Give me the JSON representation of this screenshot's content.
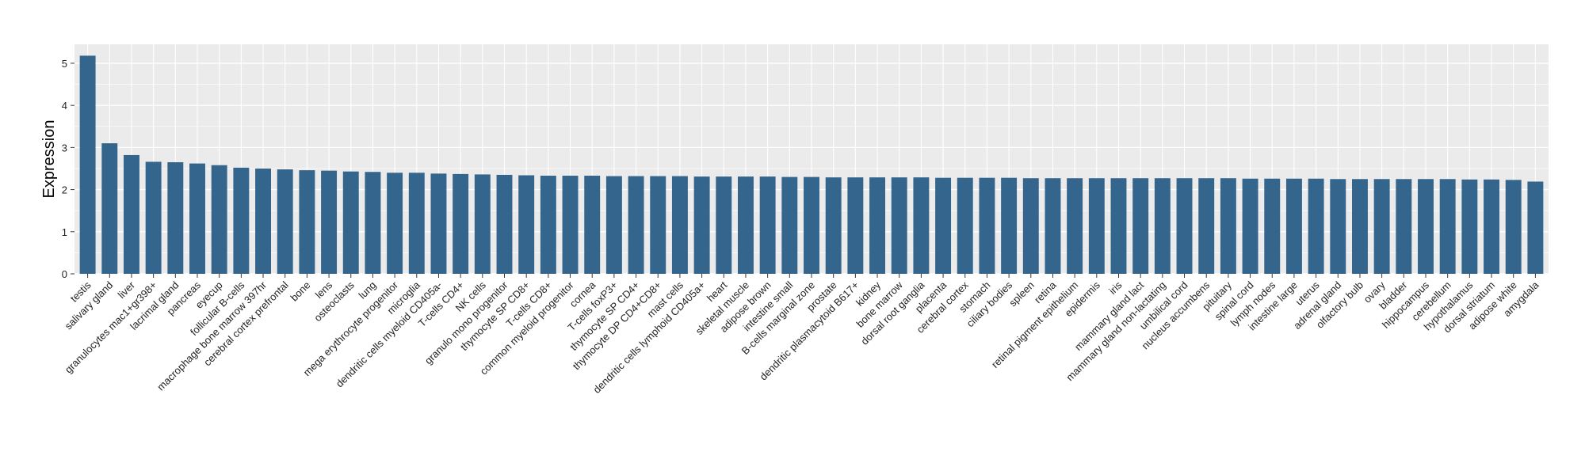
{
  "chart_data": {
    "type": "bar",
    "title": "",
    "xlabel": "",
    "ylabel": "Expression",
    "ylim": [
      0,
      5.45
    ],
    "yticks": [
      0,
      1,
      2,
      3,
      4,
      5
    ],
    "ytick_labels": [
      "0",
      "1",
      "2",
      "3",
      "4",
      "5"
    ],
    "grid": true,
    "legend": "none",
    "colors": {
      "bar": "#34658D",
      "panel": "#EBEBEB",
      "gridline": "#FFFFFF",
      "tick": "#333333"
    },
    "categories": [
      "testis",
      "salivary gland",
      "liver",
      "granulocytes mac1+gr398+",
      "lacrimal gland",
      "pancreas",
      "eyecup",
      "follicular B-cells",
      "macrophage bone marrow 397hr",
      "cerebral cortex prefrontal",
      "bone",
      "lens",
      "osteoclasts",
      "lung",
      "mega erythrocyte progenitor",
      "microglia",
      "dendritic cells myeloid CD405a-",
      "T-cells CD4+",
      "NK cells",
      "granulo mono progenitor",
      "thymocyte SP CD8+",
      "T-cells CD8+",
      "common myeloid progenitor",
      "cornea",
      "T-cells foxP3+",
      "thymocyte SP CD4+",
      "thymocyte DP CD4+CD8+",
      "mast cells",
      "dendritic cells lymphoid CD405a+",
      "heart",
      "skeletal muscle",
      "adipose brown",
      "intestine small",
      "B-cells marginal zone",
      "prostate",
      "dendritic plasmacytoid B617+",
      "kidney",
      "bone marrow",
      "dorsal root ganglia",
      "placenta",
      "cerebral cortex",
      "stomach",
      "ciliary bodies",
      "spleen",
      "retina",
      "retinal pigment epithelium",
      "epidermis",
      "iris",
      "mammary gland lact",
      "mammary gland non-lactating",
      "umbilical cord",
      "nucleus accumbens",
      "pituitary",
      "spinal cord",
      "lymph nodes",
      "intestine large",
      "uterus",
      "adrenal gland",
      "olfactory bulb",
      "ovary",
      "bladder",
      "hippocampus",
      "cerebellum",
      "hypothalamus",
      "dorsal striatum",
      "adipose white",
      "amygdala"
    ],
    "values": [
      5.18,
      3.1,
      2.82,
      2.66,
      2.65,
      2.62,
      2.58,
      2.52,
      2.5,
      2.48,
      2.46,
      2.45,
      2.43,
      2.42,
      2.4,
      2.4,
      2.38,
      2.37,
      2.36,
      2.35,
      2.34,
      2.33,
      2.33,
      2.33,
      2.32,
      2.32,
      2.32,
      2.32,
      2.31,
      2.31,
      2.31,
      2.31,
      2.3,
      2.3,
      2.29,
      2.29,
      2.29,
      2.29,
      2.29,
      2.28,
      2.28,
      2.28,
      2.28,
      2.27,
      2.27,
      2.27,
      2.27,
      2.27,
      2.27,
      2.27,
      2.27,
      2.27,
      2.27,
      2.26,
      2.26,
      2.26,
      2.26,
      2.25,
      2.25,
      2.25,
      2.25,
      2.25,
      2.25,
      2.24,
      2.24,
      2.23,
      2.19
    ]
  }
}
